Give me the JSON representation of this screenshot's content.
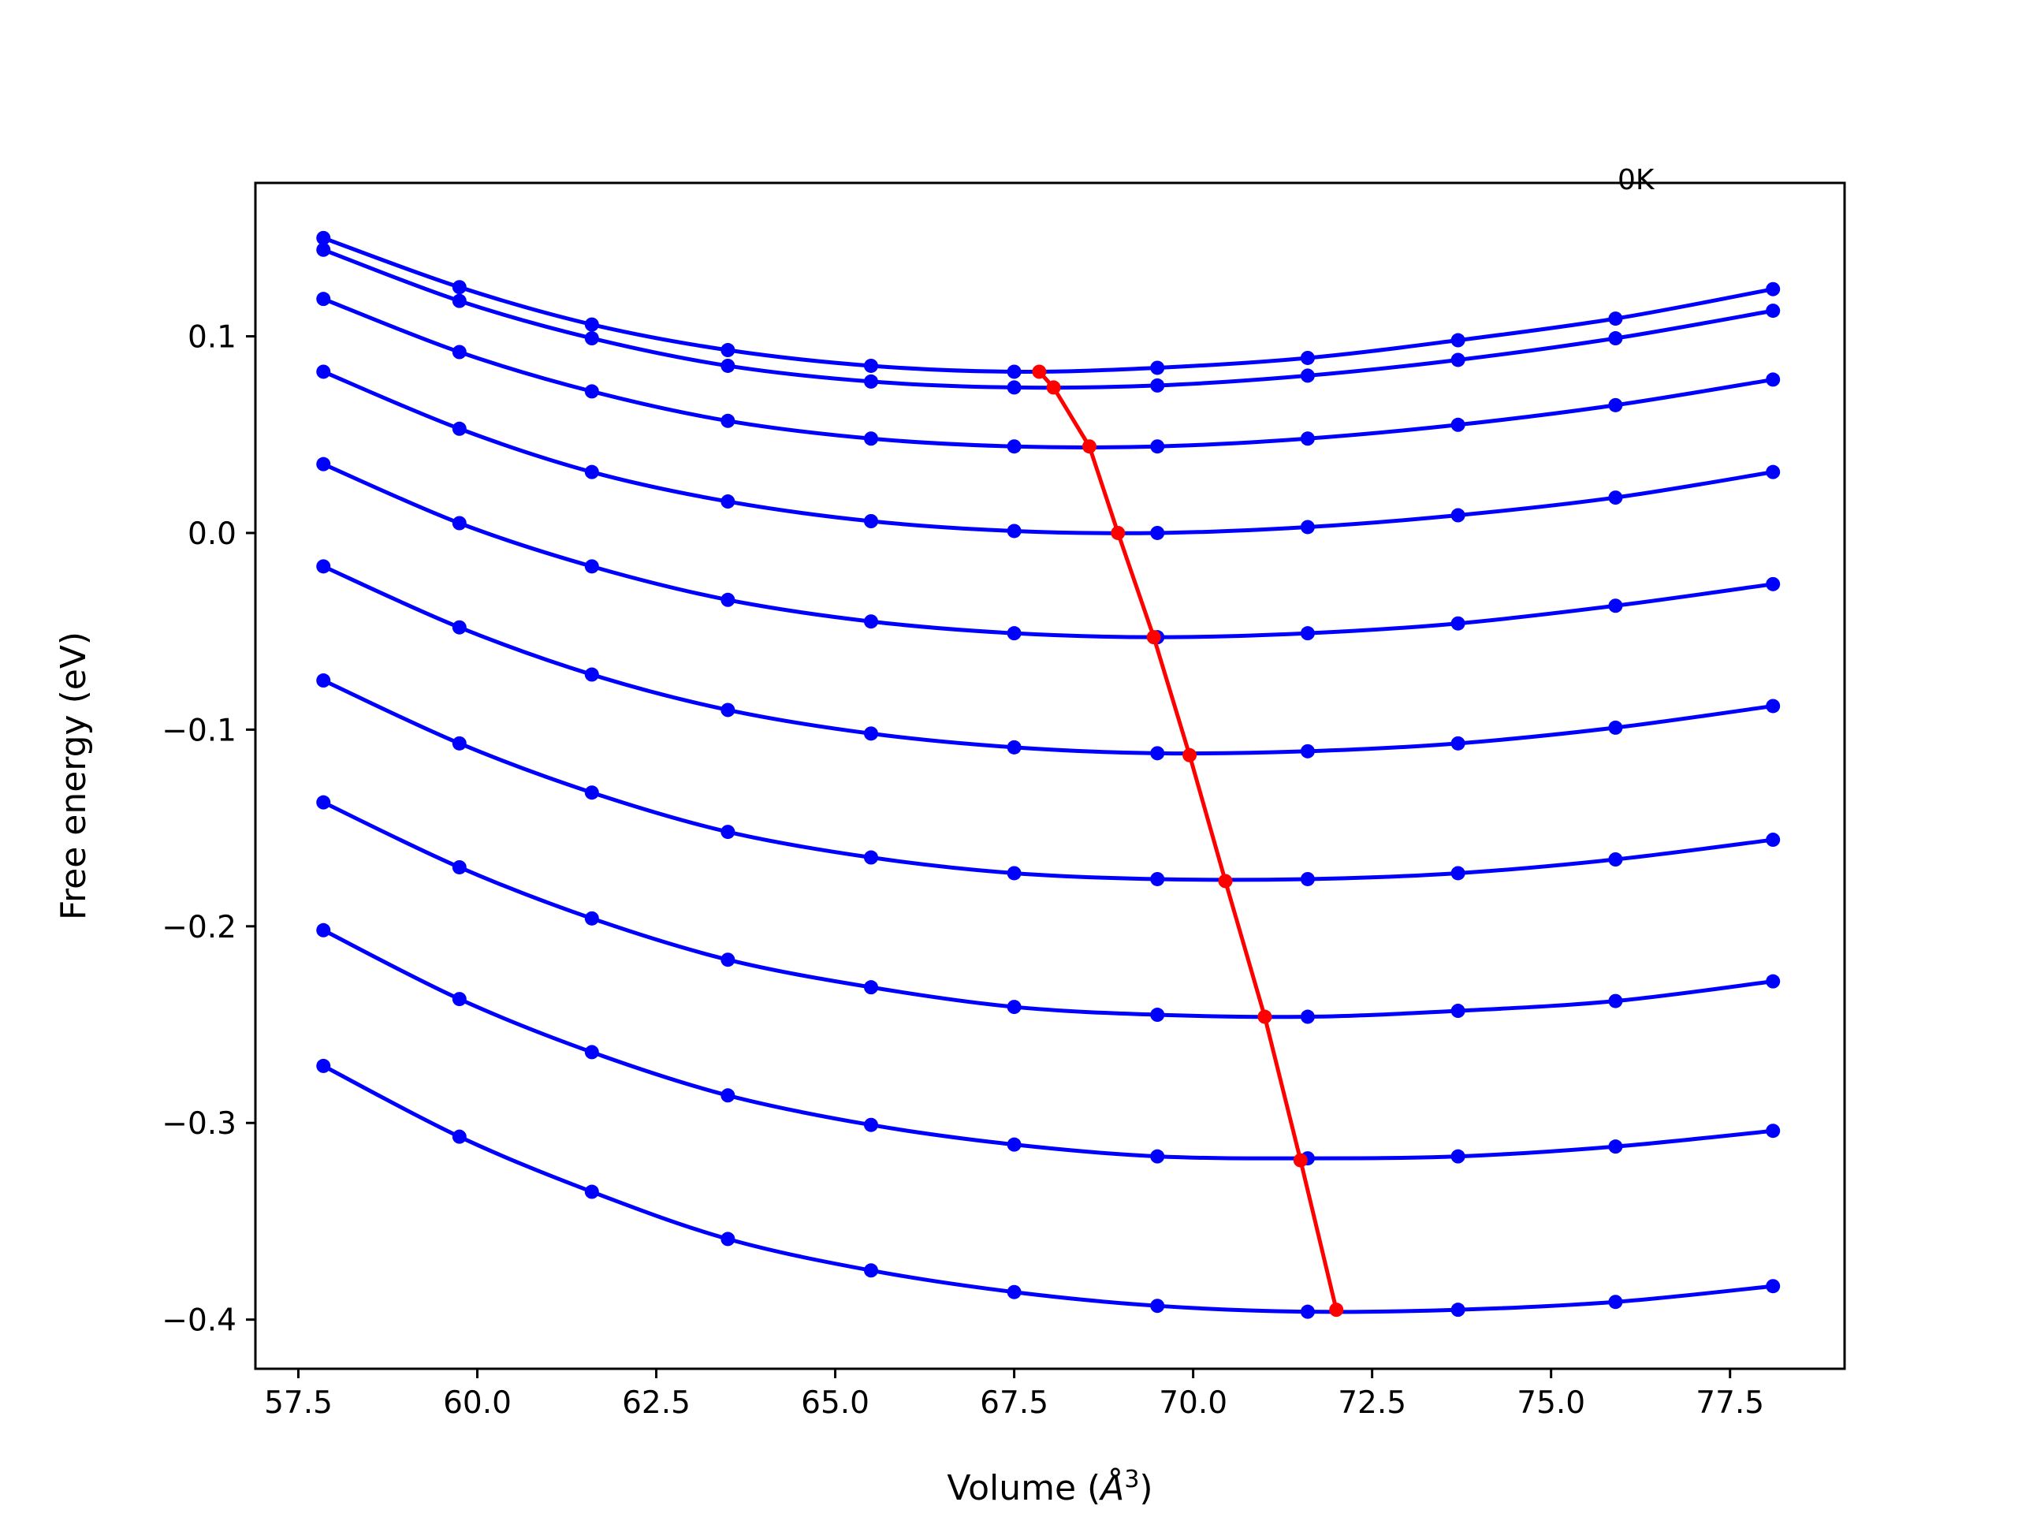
{
  "chart_data": {
    "type": "line",
    "title": "",
    "xlabel": "Volume",
    "xlabel_unit_base": "Å",
    "xlabel_unit_exp": "3",
    "ylabel": "Free energy (eV)",
    "annotation": "0K",
    "xlim": [
      56.9,
      79.1
    ],
    "ylim": [
      -0.425,
      0.178
    ],
    "xticks": [
      57.5,
      60.0,
      62.5,
      65.0,
      67.5,
      70.0,
      72.5,
      75.0,
      77.5
    ],
    "xtick_labels": [
      "57.5",
      "60.0",
      "62.5",
      "65.0",
      "67.5",
      "70.0",
      "72.5",
      "75.0",
      "77.5"
    ],
    "yticks": [
      0.1,
      0.0,
      -0.1,
      -0.2,
      -0.3,
      -0.4
    ],
    "ytick_labels": [
      "0.1",
      "0.0",
      "−0.1",
      "−0.2",
      "−0.3",
      "−0.4"
    ],
    "grid": false,
    "legend": "none",
    "x": [
      57.85,
      59.75,
      61.6,
      63.5,
      65.5,
      67.5,
      69.5,
      71.6,
      73.7,
      75.9,
      78.1
    ],
    "series": [
      {
        "color": "#0000ff",
        "values": [
          0.15,
          0.125,
          0.106,
          0.093,
          0.085,
          0.082,
          0.084,
          0.089,
          0.098,
          0.109,
          0.124
        ]
      },
      {
        "color": "#0000ff",
        "values": [
          0.144,
          0.118,
          0.099,
          0.085,
          0.077,
          0.074,
          0.075,
          0.08,
          0.088,
          0.099,
          0.113
        ]
      },
      {
        "color": "#0000ff",
        "values": [
          0.119,
          0.092,
          0.072,
          0.057,
          0.048,
          0.044,
          0.044,
          0.048,
          0.055,
          0.065,
          0.078
        ]
      },
      {
        "color": "#0000ff",
        "values": [
          0.082,
          0.053,
          0.031,
          0.016,
          0.006,
          0.001,
          0.0,
          0.003,
          0.009,
          0.018,
          0.031
        ]
      },
      {
        "color": "#0000ff",
        "values": [
          0.035,
          0.005,
          -0.017,
          -0.034,
          -0.045,
          -0.051,
          -0.053,
          -0.051,
          -0.046,
          -0.037,
          -0.026
        ]
      },
      {
        "color": "#0000ff",
        "values": [
          -0.017,
          -0.048,
          -0.072,
          -0.09,
          -0.102,
          -0.109,
          -0.112,
          -0.111,
          -0.107,
          -0.099,
          -0.088
        ]
      },
      {
        "color": "#0000ff",
        "values": [
          -0.075,
          -0.107,
          -0.132,
          -0.152,
          -0.165,
          -0.173,
          -0.176,
          -0.176,
          -0.173,
          -0.166,
          -0.156
        ]
      },
      {
        "color": "#0000ff",
        "values": [
          -0.137,
          -0.17,
          -0.196,
          -0.217,
          -0.231,
          -0.241,
          -0.245,
          -0.246,
          -0.243,
          -0.238,
          -0.228
        ]
      },
      {
        "color": "#0000ff",
        "values": [
          -0.202,
          -0.237,
          -0.264,
          -0.286,
          -0.301,
          -0.311,
          -0.317,
          -0.318,
          -0.317,
          -0.312,
          -0.304
        ]
      },
      {
        "color": "#0000ff",
        "values": [
          -0.271,
          -0.307,
          -0.335,
          -0.359,
          -0.375,
          -0.386,
          -0.393,
          -0.396,
          -0.395,
          -0.391,
          -0.383
        ]
      }
    ],
    "minima_line": {
      "color": "#ff0000",
      "x": [
        67.85,
        68.05,
        68.55,
        68.95,
        69.45,
        69.95,
        70.45,
        71.0,
        71.5,
        72.0
      ],
      "y": [
        0.082,
        0.074,
        0.044,
        0.0,
        -0.053,
        -0.113,
        -0.177,
        -0.246,
        -0.319,
        -0.395
      ]
    }
  }
}
